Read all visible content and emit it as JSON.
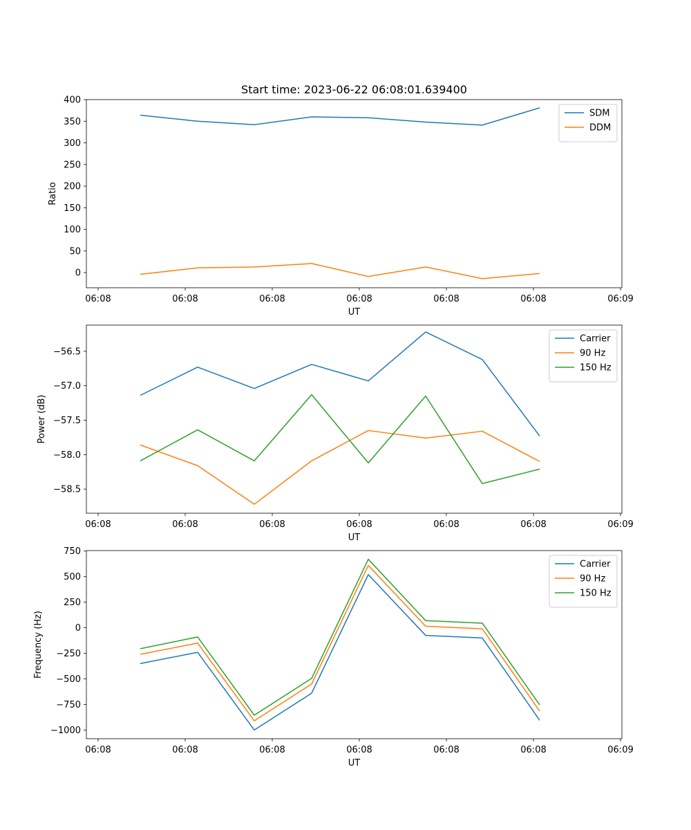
{
  "chart_data": [
    {
      "type": "line",
      "title": "Start time: 2023-06-22 06:08:01.639400",
      "xlabel": "UT",
      "ylabel": "Ratio",
      "x_tick_labels": [
        "06:08",
        "06:08",
        "06:08",
        "06:08",
        "06:08",
        "06:08",
        "06:09"
      ],
      "y_ticks": [
        0,
        50,
        100,
        150,
        200,
        250,
        300,
        350,
        400
      ],
      "y_tick_labels": [
        "0",
        "50",
        "100",
        "150",
        "200",
        "250",
        "300",
        "350",
        "400"
      ],
      "ylim": [
        -35,
        400
      ],
      "legend_position": "top-right",
      "series": [
        {
          "name": "SDM",
          "color": "#1f77b4",
          "values": [
            364,
            350,
            342,
            360,
            358,
            348,
            341,
            381
          ]
        },
        {
          "name": "DDM",
          "color": "#ff7f0e",
          "values": [
            -4,
            11,
            13,
            21,
            -9,
            13,
            -14,
            -2
          ]
        }
      ]
    },
    {
      "type": "line",
      "title": "",
      "xlabel": "UT",
      "ylabel": "Power (dB)",
      "x_tick_labels": [
        "06:08",
        "06:08",
        "06:08",
        "06:08",
        "06:08",
        "06:08",
        "06:09"
      ],
      "y_ticks": [
        -58.5,
        -58.0,
        -57.5,
        -57.0,
        -56.5
      ],
      "y_tick_labels": [
        "−58.5",
        "−58.0",
        "−57.5",
        "−57.0",
        "−56.5"
      ],
      "ylim": [
        -58.85,
        -56.12
      ],
      "legend_position": "top-right",
      "series": [
        {
          "name": "Carrier",
          "color": "#1f77b4",
          "values": [
            -57.14,
            -56.73,
            -57.04,
            -56.69,
            -56.93,
            -56.22,
            -56.62,
            -57.73
          ]
        },
        {
          "name": "90 Hz",
          "color": "#ff7f0e",
          "values": [
            -57.86,
            -58.16,
            -58.72,
            -58.09,
            -57.65,
            -57.76,
            -57.66,
            -58.1
          ]
        },
        {
          "name": "150 Hz",
          "color": "#2ca02c",
          "values": [
            -58.09,
            -57.64,
            -58.09,
            -57.13,
            -58.12,
            -57.15,
            -58.42,
            -58.21
          ]
        }
      ]
    },
    {
      "type": "line",
      "title": "",
      "xlabel": "UT",
      "ylabel": "Frequency (Hz)",
      "x_tick_labels": [
        "06:08",
        "06:08",
        "06:08",
        "06:08",
        "06:08",
        "06:08",
        "06:09"
      ],
      "y_ticks": [
        -1000,
        -750,
        -500,
        -250,
        0,
        250,
        500,
        750
      ],
      "y_tick_labels": [
        "−1000",
        "−750",
        "−500",
        "−250",
        "0",
        "250",
        "500",
        "750"
      ],
      "ylim": [
        -1085,
        755
      ],
      "legend_position": "top-right",
      "series": [
        {
          "name": "Carrier",
          "color": "#1f77b4",
          "values": [
            -350,
            -240,
            -1000,
            -640,
            520,
            -75,
            -100,
            -905
          ]
        },
        {
          "name": "90 Hz",
          "color": "#ff7f0e",
          "values": [
            -260,
            -150,
            -910,
            -550,
            610,
            15,
            -10,
            -815
          ]
        },
        {
          "name": "150 Hz",
          "color": "#2ca02c",
          "values": [
            -205,
            -90,
            -855,
            -495,
            670,
            70,
            45,
            -755
          ]
        }
      ]
    }
  ]
}
